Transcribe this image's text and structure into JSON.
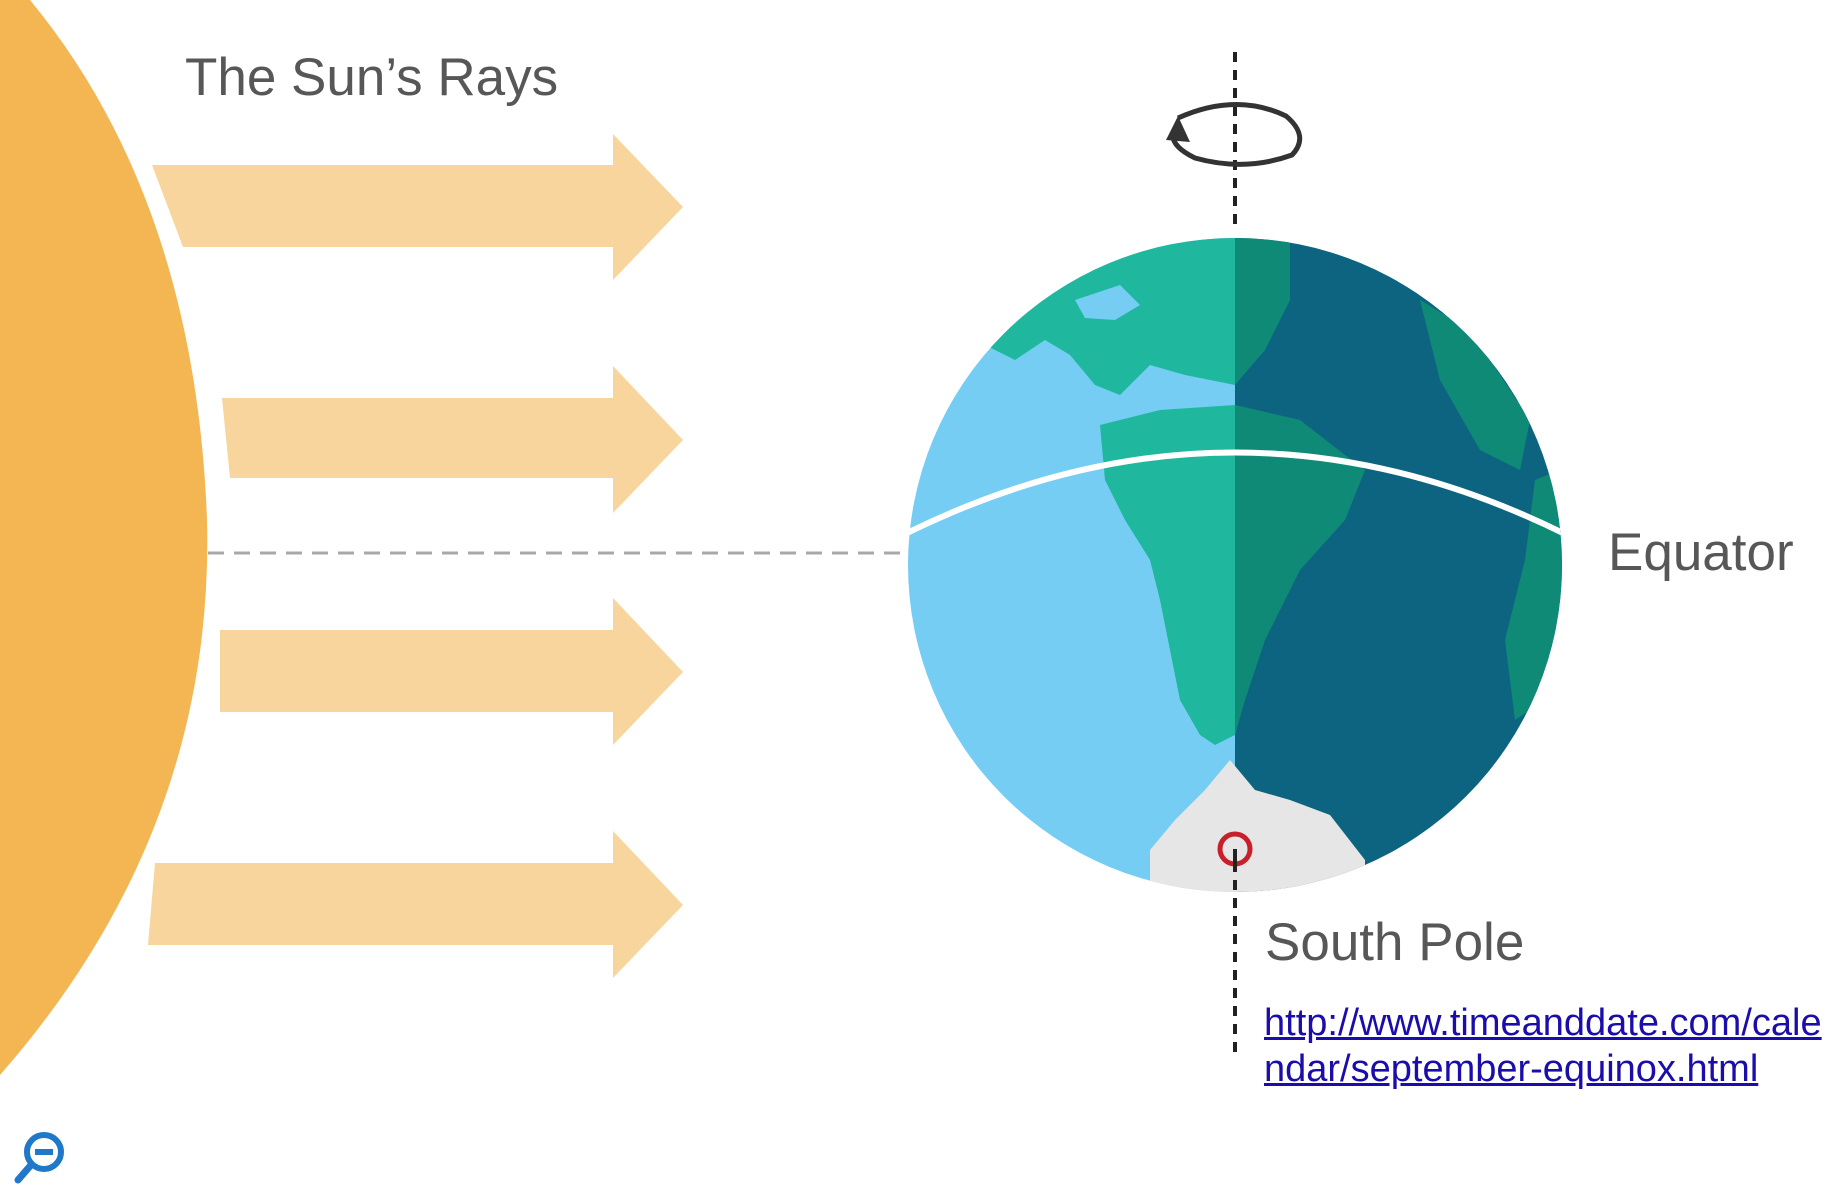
{
  "labels": {
    "sun_rays": "The Sun’s Rays",
    "equator": "Equator",
    "south_pole": "South Pole"
  },
  "source": {
    "url": "http://www.timeanddate.com/calendar/september-equinox.html"
  },
  "icons": {
    "rotation": "rotation-arrow-icon",
    "pole_marker": "pole-marker-icon",
    "zoom_out": "zoom-out-icon"
  },
  "colors": {
    "sun": "#f3b652",
    "ray": "#f8d59c",
    "ocean_day": "#76cdf3",
    "ocean_night": "#0d6481",
    "land_day": "#1fb89e",
    "land_night": "#0f8a77",
    "ice": "#e6e6e6",
    "pole_marker": "#c8202a",
    "link": "#1a0dab",
    "zoom_icon": "#1f78c8"
  }
}
